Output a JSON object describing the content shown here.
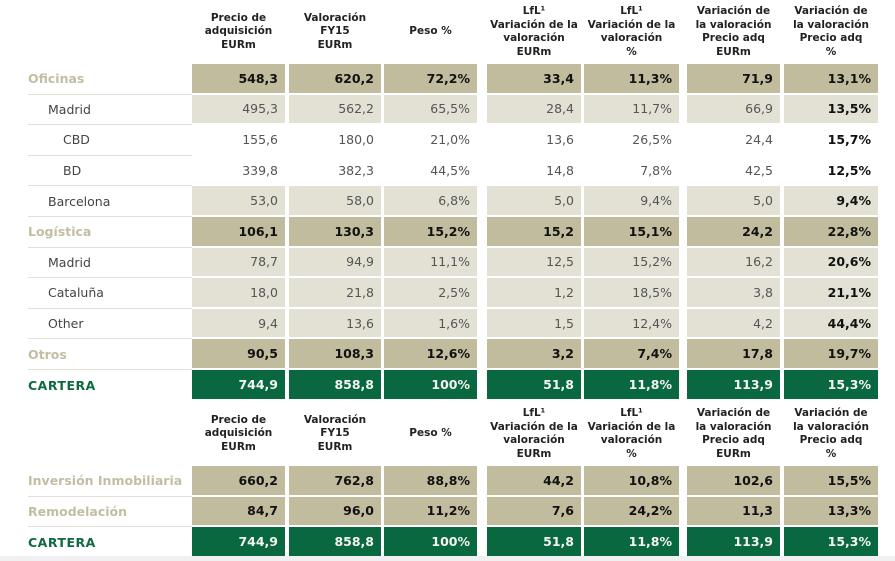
{
  "headers": [
    "Precio de\nadquisición\nEURm",
    "Valoración\nFY15\nEURm",
    "Peso %",
    "LfL¹\nVariación de la\nvaloración\nEURm",
    "LfL¹\nVariación de la\nvaloración\n%",
    "Variación de\nla valoración\nPrecio adq\nEURm",
    "Variación de\nla valoración\nPrecio adq\n%"
  ],
  "table1": {
    "rows": [
      {
        "label": "Oficinas",
        "type": "cat",
        "values": [
          "548,3",
          "620,2",
          "72,2%",
          "33,4",
          "11,3%",
          "71,9",
          "13,1%"
        ]
      },
      {
        "label": "Madrid",
        "type": "sub1",
        "values": [
          "495,3",
          "562,2",
          "65,5%",
          "28,4",
          "11,7%",
          "66,9",
          "13,5%"
        ]
      },
      {
        "label": "CBD",
        "type": "sub2",
        "values": [
          "155,6",
          "180,0",
          "21,0%",
          "13,6",
          "26,5%",
          "24,4",
          "15,7%"
        ]
      },
      {
        "label": "BD",
        "type": "sub2",
        "values": [
          "339,8",
          "382,3",
          "44,5%",
          "14,8",
          "7,8%",
          "42,5",
          "12,5%"
        ]
      },
      {
        "label": "Barcelona",
        "type": "sub1",
        "values": [
          "53,0",
          "58,0",
          "6,8%",
          "5,0",
          "9,4%",
          "5,0",
          "9,4%"
        ]
      },
      {
        "label": "Logística",
        "type": "cat",
        "values": [
          "106,1",
          "130,3",
          "15,2%",
          "15,2",
          "15,1%",
          "24,2",
          "22,8%"
        ]
      },
      {
        "label": "Madrid",
        "type": "sub1",
        "values": [
          "78,7",
          "94,9",
          "11,1%",
          "12,5",
          "15,2%",
          "16,2",
          "20,6%"
        ]
      },
      {
        "label": "Cataluña",
        "type": "sub1",
        "values": [
          "18,0",
          "21,8",
          "2,5%",
          "1,2",
          "18,5%",
          "3,8",
          "21,1%"
        ]
      },
      {
        "label": "Other",
        "type": "sub1",
        "values": [
          "9,4",
          "13,6",
          "1,6%",
          "1,5",
          "12,4%",
          "4,2",
          "44,4%"
        ]
      },
      {
        "label": "Otros",
        "type": "cat",
        "values": [
          "90,5",
          "108,3",
          "12,6%",
          "3,2",
          "7,4%",
          "17,8",
          "19,7%"
        ]
      },
      {
        "label": "CARTERA",
        "type": "total",
        "values": [
          "744,9",
          "858,8",
          "100%",
          "51,8",
          "11,8%",
          "113,9",
          "15,3%"
        ]
      }
    ]
  },
  "table2": {
    "rows": [
      {
        "label": "Inversión Inmobiliaria",
        "type": "cat",
        "values": [
          "660,2",
          "762,8",
          "88,8%",
          "44,2",
          "10,8%",
          "102,6",
          "15,5%"
        ]
      },
      {
        "label": "Remodelación",
        "type": "cat",
        "values": [
          "84,7",
          "96,0",
          "11,2%",
          "7,6",
          "24,2%",
          "11,3",
          "13,3%"
        ]
      },
      {
        "label": "CARTERA",
        "type": "total",
        "values": [
          "744,9",
          "858,8",
          "100%",
          "51,8",
          "11,8%",
          "113,9",
          "15,3%"
        ]
      }
    ]
  },
  "colors": {
    "category_fill": "#c0bc9d",
    "sub_fill": "#e3e1d4",
    "total_fill": "#096840",
    "category_label": "#c2bea2",
    "total_label": "#0f6a41"
  }
}
